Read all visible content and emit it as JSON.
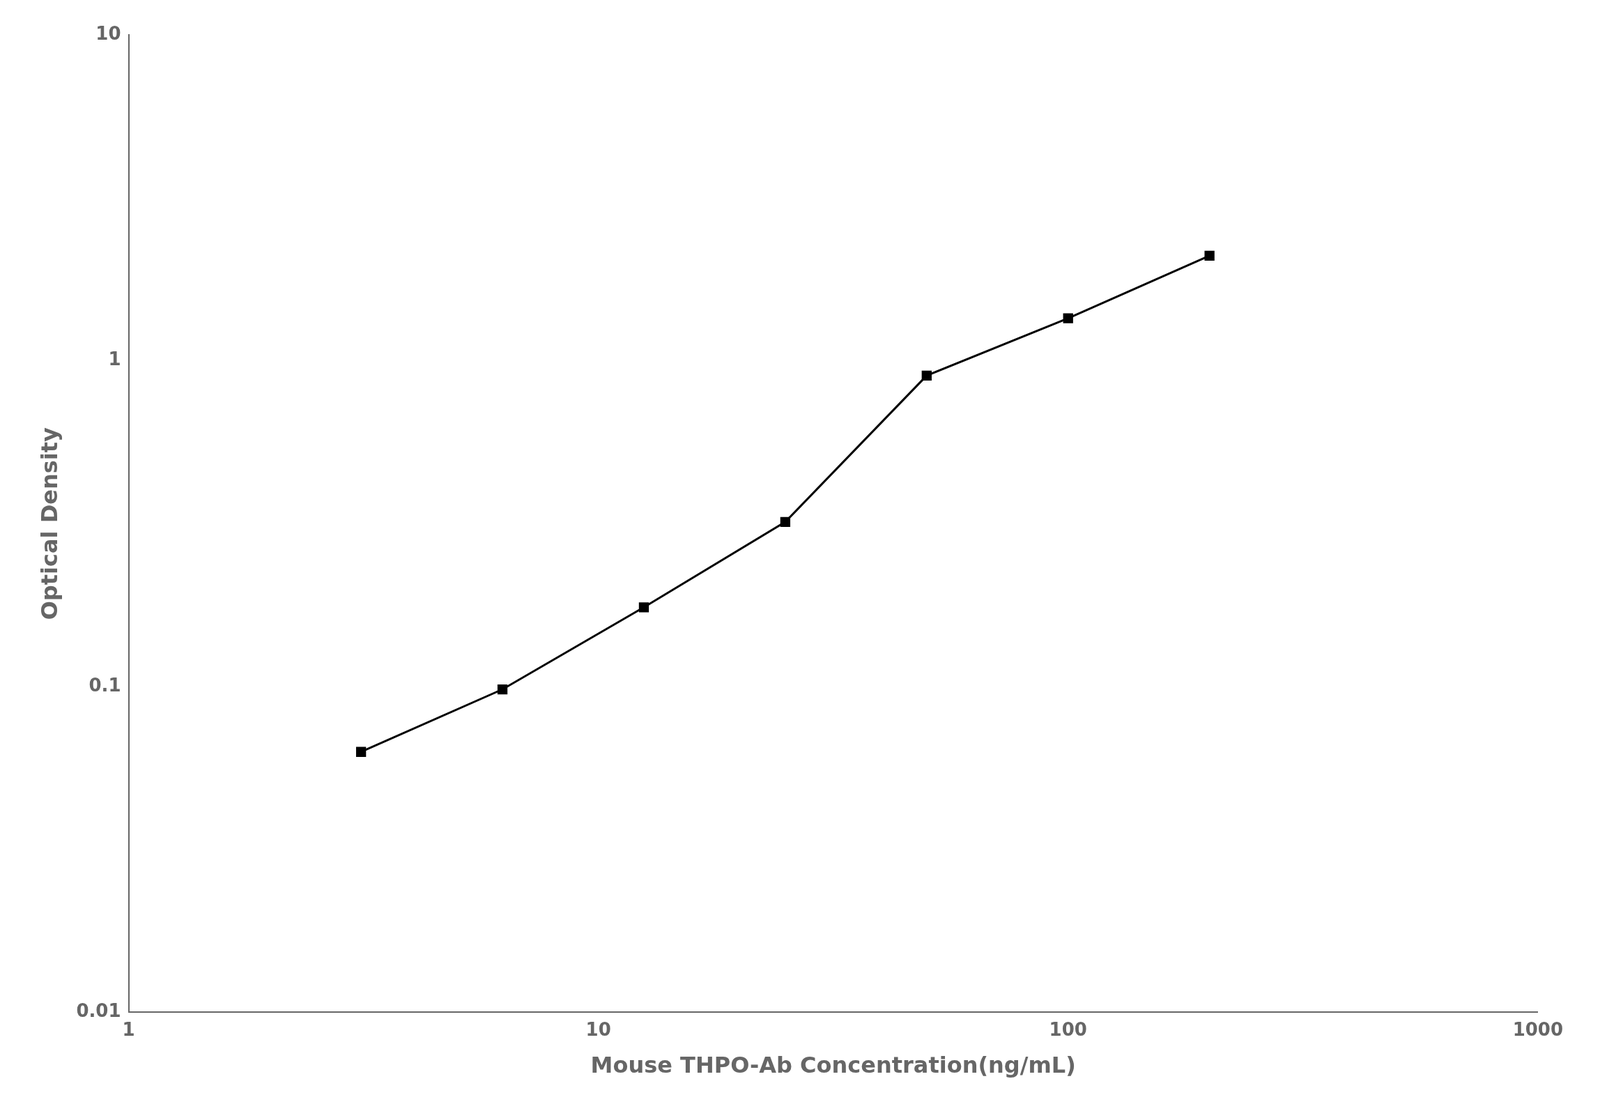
{
  "chart_data": {
    "type": "line",
    "x": [
      3.125,
      6.25,
      12.5,
      25,
      50,
      100,
      200
    ],
    "values": [
      0.063,
      0.098,
      0.175,
      0.32,
      0.9,
      1.35,
      2.1
    ],
    "xlabel": "Mouse THPO-Ab Concentration(ng/mL)",
    "ylabel": "Optical Density",
    "xlim": [
      1,
      1000
    ],
    "ylim": [
      0.01,
      10
    ],
    "xticks": [
      1,
      10,
      100,
      1000
    ],
    "yticks": [
      0.01,
      0.1,
      1,
      10
    ],
    "log": true,
    "grid": false,
    "color": "#000000",
    "marker": "square"
  }
}
